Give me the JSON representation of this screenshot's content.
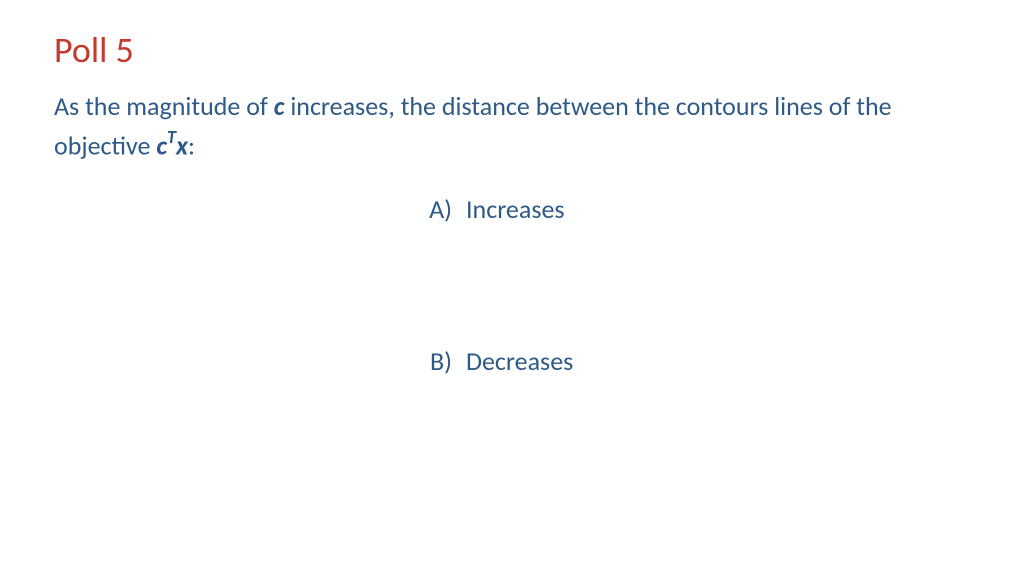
{
  "colors": {
    "title": "#c43a2e",
    "body": "#2d5a87",
    "background": "#ffffff"
  },
  "title": "Poll 5",
  "question": {
    "part1": "As the magnitude of ",
    "c": "c",
    "part2": " increases, the distance between the contours lines of the objective ",
    "cT": "c",
    "T": "T",
    "x": "x",
    "part3": ":"
  },
  "options": {
    "a": {
      "letter": "A)",
      "text": "Increases"
    },
    "b": {
      "letter": "B)",
      "text": "Decreases"
    }
  }
}
